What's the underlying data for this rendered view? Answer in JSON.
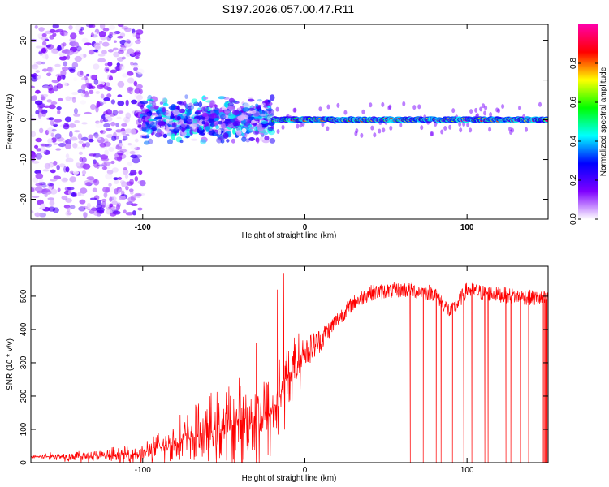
{
  "figure": {
    "title": "S197.2026.057.00.47.R11"
  },
  "chart_data": [
    {
      "type": "heatmap",
      "title": "S197.2026.057.00.47.R11",
      "xlabel": "Height of straight line (km)",
      "ylabel": "Frequency (Hz)",
      "xlim": [
        -169,
        150
      ],
      "ylim": [
        -25,
        24
      ],
      "x_ticks": [
        {
          "value": -100,
          "label": "-100"
        },
        {
          "value": 0,
          "label": "0"
        },
        {
          "value": 100,
          "label": "100"
        }
      ],
      "y_ticks": [
        {
          "value": 20,
          "label": "20"
        },
        {
          "value": 10,
          "label": "10"
        },
        {
          "value": 0,
          "label": "0"
        },
        {
          "value": -10,
          "label": "-10"
        },
        {
          "value": -20,
          "label": "-20"
        }
      ],
      "colorbar": {
        "label": "Normalized spectral amplitude",
        "range": [
          0,
          1
        ],
        "ticks": [
          {
            "value": 0,
            "label": "0.0"
          },
          {
            "value": 0.2,
            "label": "0.2"
          },
          {
            "value": 0.4,
            "label": "0.4"
          },
          {
            "value": 0.6,
            "label": "0.6"
          },
          {
            "value": 0.8,
            "label": "0.8"
          }
        ],
        "colors": [
          "#ffffff",
          "#7f00ff",
          "#0000ff",
          "#00ffff",
          "#00ff00",
          "#ffff00",
          "#ff0000",
          "#ff00aa"
        ]
      },
      "regions": [
        {
          "x_from": -169,
          "x_to": -100,
          "freq_spread": 24,
          "amplitude": 0.15,
          "description": "scattered noise"
        },
        {
          "x_from": -100,
          "x_to": -20,
          "freq_spread": 6,
          "amplitude": 0.35
        },
        {
          "x_from": -20,
          "x_to": 150,
          "freq_center": 0,
          "freq_spread": 0.6,
          "amplitude": 1.0,
          "description": "strong line near 0 Hz"
        }
      ]
    },
    {
      "type": "line",
      "xlabel": "Height of straight line (km)",
      "ylabel": "SNR (10 * v/v)",
      "xlim": [
        -169,
        150
      ],
      "ylim": [
        0,
        590
      ],
      "color": "#ff0000",
      "x_ticks": [
        {
          "value": -100,
          "label": "-100"
        },
        {
          "value": 0,
          "label": "0"
        },
        {
          "value": 100,
          "label": "100"
        }
      ],
      "y_ticks": [
        {
          "value": 0,
          "label": "0"
        },
        {
          "value": 100,
          "label": "100"
        },
        {
          "value": 200,
          "label": "200"
        },
        {
          "value": 300,
          "label": "300"
        },
        {
          "value": 400,
          "label": "400"
        },
        {
          "value": 500,
          "label": "500"
        }
      ],
      "trend": {
        "x": [
          -169,
          -120,
          -100,
          -80,
          -60,
          -40,
          -20,
          -10,
          0,
          10,
          20,
          30,
          40,
          60,
          80,
          90,
          100,
          110,
          130,
          150
        ],
        "y": [
          18,
          20,
          28,
          60,
          90,
          120,
          150,
          260,
          330,
          370,
          430,
          480,
          510,
          520,
          510,
          450,
          520,
          510,
          500,
          490
        ]
      },
      "noise": {
        "x": [
          -169,
          -100,
          -60,
          -20,
          0,
          20,
          150
        ],
        "amplitude": [
          10,
          40,
          130,
          200,
          80,
          40,
          40
        ]
      },
      "spikes": [
        {
          "x": -13,
          "y": 570
        },
        {
          "x": -17,
          "y": 520
        },
        {
          "x": -30,
          "y": 360
        }
      ],
      "dropouts": [
        65,
        73,
        81,
        84,
        91,
        98,
        103,
        111,
        113,
        124,
        127,
        133,
        138,
        149
      ],
      "dense_band": {
        "x_from": 147,
        "x_to": 150
      }
    }
  ]
}
